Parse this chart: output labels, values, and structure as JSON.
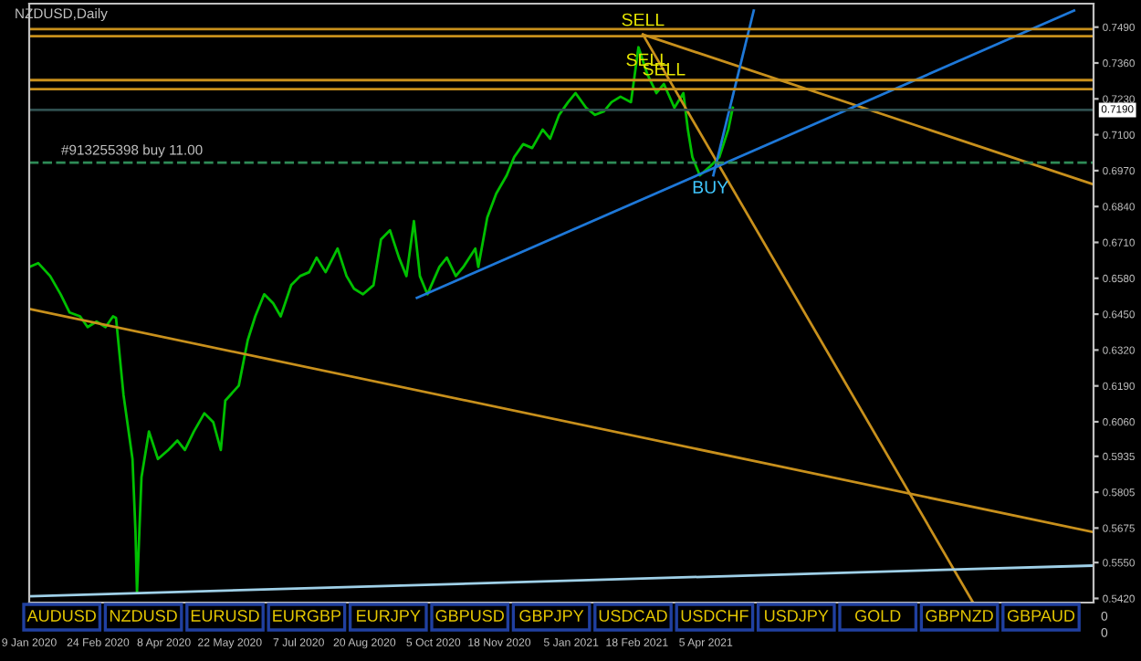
{
  "chart_data": {
    "type": "line",
    "title": "NZDUSD,Daily",
    "xlim": [
      "2020-01-09",
      "2021-12-20"
    ],
    "ylim": [
      0.5405,
      0.7575
    ],
    "xticks": [
      {
        "value": "2020-01-09",
        "label": "9 Jan 2020"
      },
      {
        "value": "2020-02-24",
        "label": "24 Feb 2020"
      },
      {
        "value": "2020-04-08",
        "label": "8 Apr 2020"
      },
      {
        "value": "2020-05-22",
        "label": "22 May 2020"
      },
      {
        "value": "2020-07-07",
        "label": "7 Jul 2020"
      },
      {
        "value": "2020-08-20",
        "label": "20 Aug 2020"
      },
      {
        "value": "2020-10-05",
        "label": "5 Oct 2020"
      },
      {
        "value": "2020-11-18",
        "label": "18 Nov 2020"
      },
      {
        "value": "2021-01-05",
        "label": "5 Jan 2021"
      },
      {
        "value": "2021-02-18",
        "label": "18 Feb 2021"
      },
      {
        "value": "2021-04-05",
        "label": "5 Apr 2021"
      }
    ],
    "yticks": [
      {
        "value": 0.749,
        "label": "0.7490"
      },
      {
        "value": 0.736,
        "label": "0.7360"
      },
      {
        "value": 0.723,
        "label": "0.7230"
      },
      {
        "value": 0.71,
        "label": "0.7100"
      },
      {
        "value": 0.697,
        "label": "0.6970"
      },
      {
        "value": 0.684,
        "label": "0.6840"
      },
      {
        "value": 0.671,
        "label": "0.6710"
      },
      {
        "value": 0.658,
        "label": "0.6580"
      },
      {
        "value": 0.645,
        "label": "0.6450"
      },
      {
        "value": 0.632,
        "label": "0.6320"
      },
      {
        "value": 0.619,
        "label": "0.6190"
      },
      {
        "value": 0.606,
        "label": "0.6060"
      },
      0.5935,
      {
        "value": 0.5805,
        "label": "0.5805"
      },
      0.5675,
      {
        "value": 0.555,
        "label": "0.5550"
      },
      {
        "value": 0.542,
        "label": "0.5420"
      }
    ],
    "grid": false,
    "series": [
      {
        "color": "#00c000",
        "x": [
          "2020-01-09",
          "2020-01-15",
          "2020-01-23",
          "2020-01-30",
          "2020-02-05",
          "2020-02-12",
          "2020-02-17",
          "2020-02-23",
          "2020-02-29",
          "2020-03-05",
          "2020-03-07",
          "2020-03-12",
          "2020-03-18",
          "2020-03-20",
          "2020-03-21",
          "2020-03-24",
          "2020-03-29",
          "2020-04-04",
          "2020-04-11",
          "2020-04-17",
          "2020-04-22",
          "2020-04-28",
          "2020-05-05",
          "2020-05-11",
          "2020-05-16",
          "2020-05-19",
          "2020-05-28",
          "2020-06-03",
          "2020-06-08",
          "2020-06-14",
          "2020-06-20",
          "2020-06-25",
          "2020-07-02",
          "2020-07-08",
          "2020-07-14",
          "2020-07-19",
          "2020-07-25",
          "2020-08-02",
          "2020-08-08",
          "2020-08-13",
          "2020-08-19",
          "2020-08-26",
          "2020-08-31",
          "2020-09-06",
          "2020-09-12",
          "2020-09-17",
          "2020-09-22",
          "2020-09-26",
          "2020-10-01",
          "2020-10-09",
          "2020-10-14",
          "2020-10-20",
          "2020-10-25",
          "2020-11-02",
          "2020-11-04",
          "2020-11-10",
          "2020-11-16",
          "2020-11-23",
          "2020-11-28",
          "2020-12-04",
          "2020-12-10",
          "2020-12-17",
          "2020-12-22",
          "2020-12-28",
          "2021-01-03",
          "2021-01-08",
          "2021-01-15",
          "2021-01-21",
          "2021-01-27",
          "2021-02-01",
          "2021-02-07",
          "2021-02-14",
          "2021-02-19",
          "2021-02-25",
          "2021-03-03",
          "2021-03-08",
          "2021-03-15",
          "2021-03-21",
          "2021-03-24",
          "2021-03-27",
          "2021-04-01",
          "2021-04-08",
          "2021-04-14",
          "2021-04-20",
          "2021-04-23"
        ],
        "values": [
          0.6621,
          0.6635,
          0.6588,
          0.6522,
          0.6456,
          0.6442,
          0.6403,
          0.6423,
          0.6403,
          0.6442,
          0.6436,
          0.6157,
          0.5925,
          0.566,
          0.5441,
          0.5859,
          0.6025,
          0.5925,
          0.5958,
          0.5992,
          0.5958,
          0.6025,
          0.6091,
          0.6058,
          0.5958,
          0.6137,
          0.6191,
          0.6356,
          0.6442,
          0.6522,
          0.6489,
          0.6442,
          0.6555,
          0.6588,
          0.6602,
          0.6655,
          0.6602,
          0.6688,
          0.6588,
          0.6542,
          0.6522,
          0.6555,
          0.6721,
          0.6754,
          0.6655,
          0.6588,
          0.6787,
          0.6588,
          0.6522,
          0.6621,
          0.6655,
          0.6588,
          0.6621,
          0.6688,
          0.6621,
          0.68,
          0.6887,
          0.6953,
          0.7019,
          0.7066,
          0.7052,
          0.7119,
          0.7086,
          0.7172,
          0.7218,
          0.7251,
          0.7198,
          0.7172,
          0.7185,
          0.7218,
          0.7238,
          0.7218,
          0.7417,
          0.7318,
          0.7251,
          0.7284,
          0.7198,
          0.7251,
          0.7119,
          0.7019,
          0.6953,
          0.6986,
          0.7019,
          0.7119,
          0.7198
        ]
      },
      {
        "type": "line",
        "color": "#c8901c",
        "x": [
          "2020-01-09",
          "2021-12-20"
        ],
        "values": [
          0.6469,
          0.566
        ]
      },
      {
        "type": "line",
        "color": "#c8901c",
        "x": [
          "2021-02-22",
          "2021-12-20"
        ],
        "values": [
          0.7463,
          0.692
        ]
      },
      {
        "type": "line",
        "color": "#c8901c",
        "x": [
          "2021-02-22",
          "2021-09-30"
        ],
        "values": [
          0.7463,
          0.541
        ]
      },
      {
        "type": "line",
        "color": "#1e78d8",
        "x": [
          "2020-09-24",
          "2021-12-07"
        ],
        "values": [
          0.6509,
          0.755
        ]
      },
      {
        "type": "line",
        "color": "#1e78d8",
        "x": [
          "2021-04-10",
          "2021-05-07"
        ],
        "values": [
          0.6953,
          0.755
        ]
      },
      {
        "type": "line",
        "color": "#9fd0e8",
        "x": [
          "2020-01-09",
          "2021-12-20"
        ],
        "values": [
          0.5428,
          0.5539
        ]
      }
    ],
    "ref_lines": [
      {
        "axis": "y",
        "value": 0.7483,
        "color": "#c8901c"
      },
      {
        "axis": "y",
        "value": 0.7457,
        "color": "#c8901c"
      },
      {
        "axis": "y",
        "value": 0.7298,
        "color": "#c8901c"
      },
      {
        "axis": "y",
        "value": 0.7265,
        "color": "#c8901c"
      },
      {
        "axis": "y",
        "value": 0.719,
        "label": "0.7190",
        "color": "#2f4f4f"
      },
      {
        "axis": "y",
        "value": 0.6999,
        "label": "#913255398 buy 11.00",
        "color": "#2e8b57",
        "line_style": "dashed"
      }
    ],
    "annotations": [
      {
        "text": "SELL",
        "x": "2021-02-22",
        "y": 0.7463
      },
      {
        "text": "SELL",
        "x": "2021-02-25",
        "y": 0.7318
      },
      {
        "text": "SELL",
        "x": "2021-03-08",
        "y": 0.7284
      },
      {
        "text": "BUY",
        "x": "2021-04-08",
        "y": 0.6953
      },
      "AUDUSD",
      "NZDUSD",
      "EURUSD",
      "EURGBP",
      "EURJPY",
      "GBPUSD",
      "GBPJPY",
      "USDCAD",
      "USDCHF",
      "USDJPY",
      "GOLD",
      "GBPNZD",
      "GBPAUD",
      "0",
      "0"
    ]
  }
}
